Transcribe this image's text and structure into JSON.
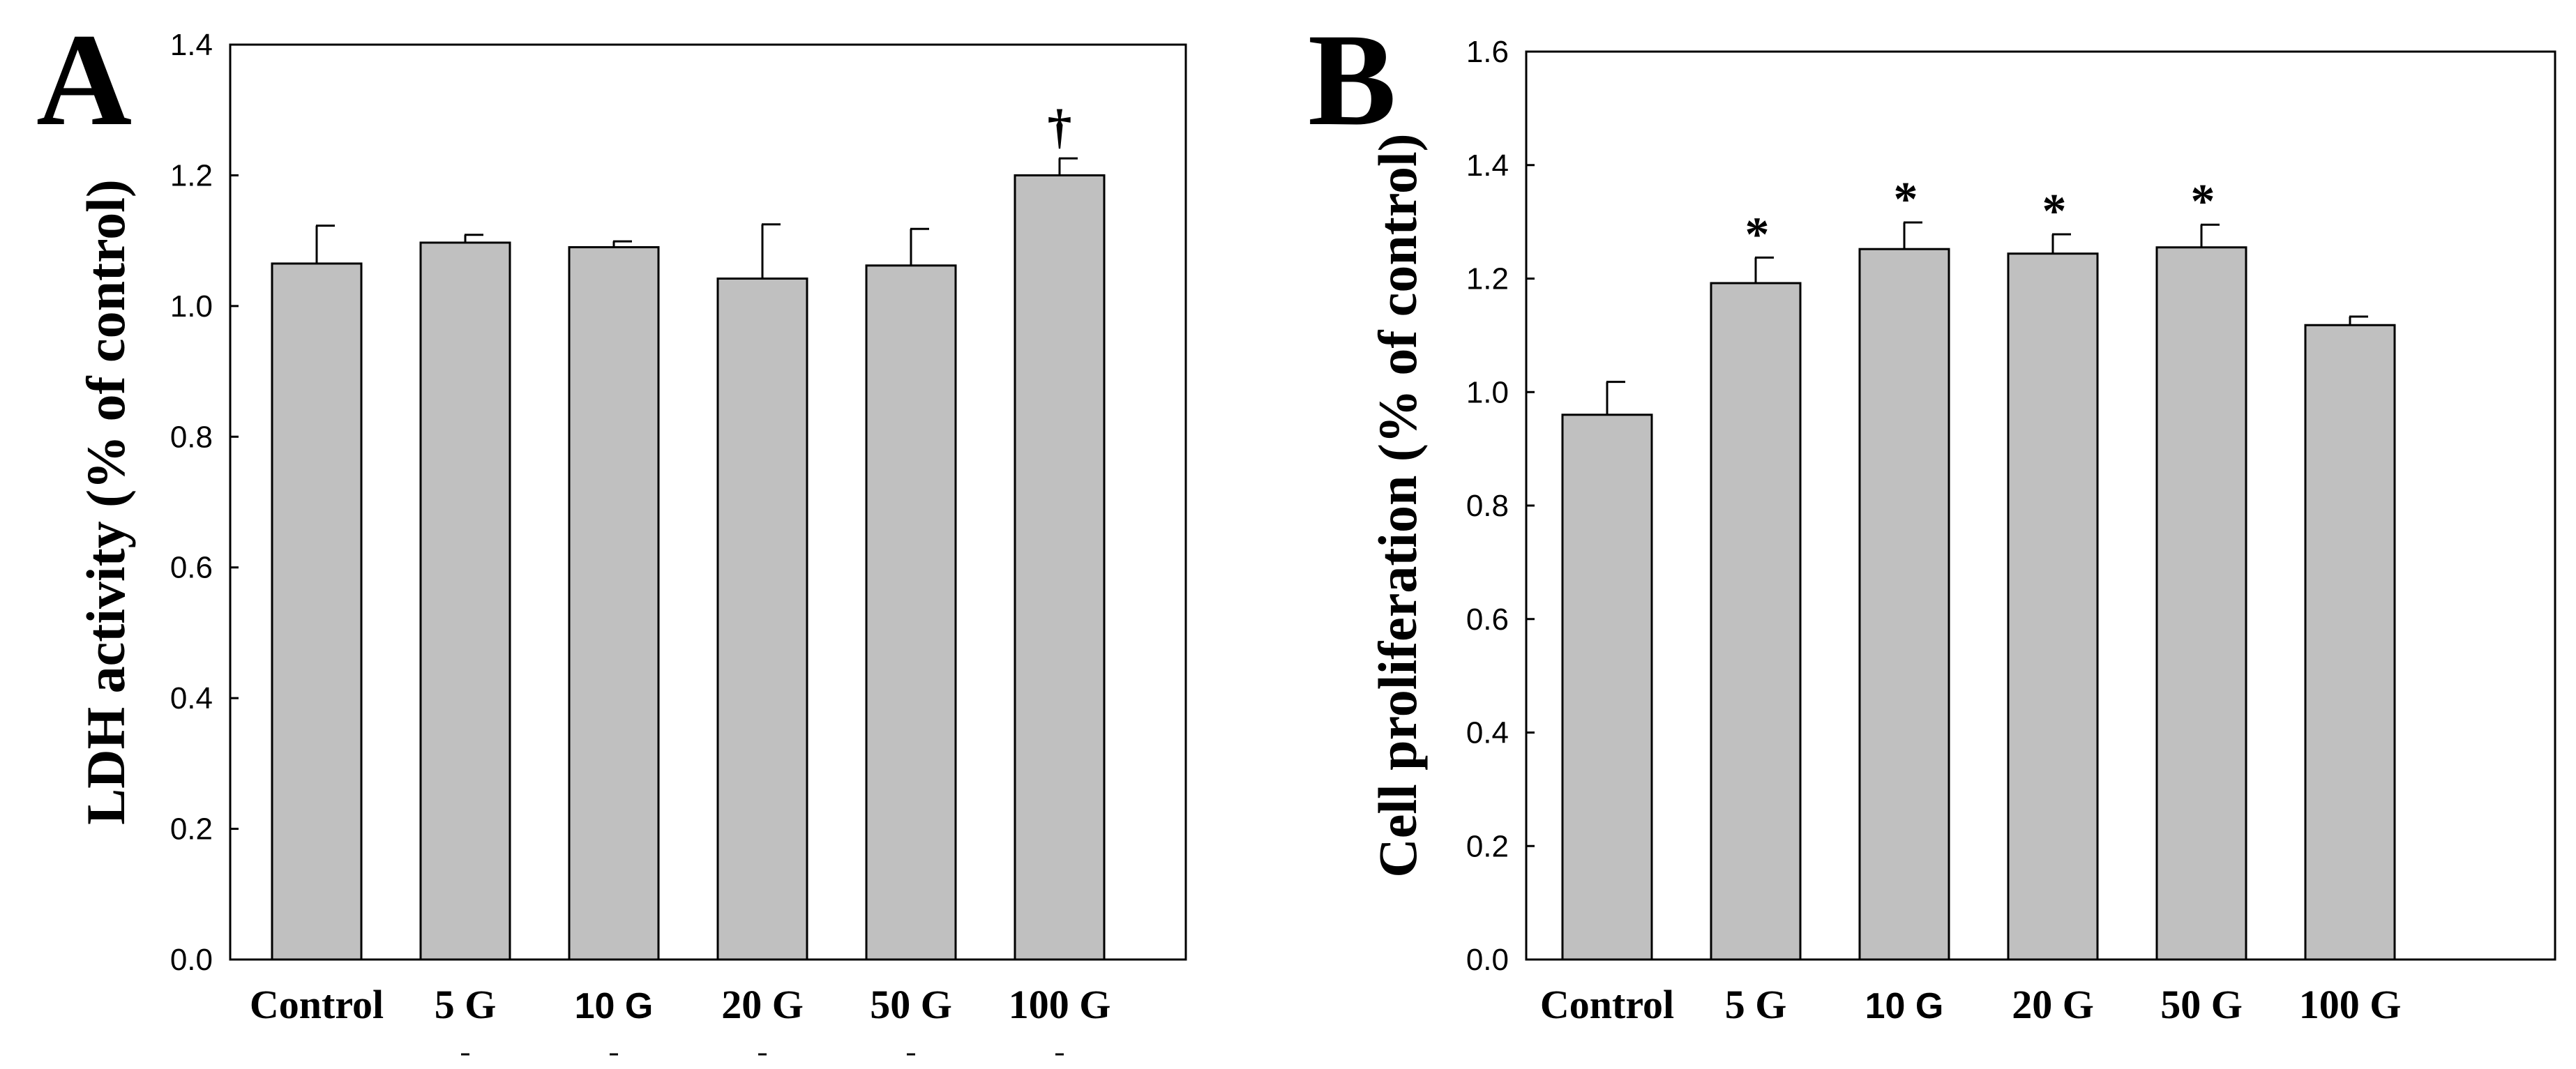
{
  "chart_data": [
    {
      "panel": "A",
      "type": "bar",
      "ylabel": "LDH activity (% of control)",
      "ylim": [
        0,
        1.4
      ],
      "yticks": [
        "0.0",
        "0.2",
        "0.4",
        "0.6",
        "0.8",
        "1.0",
        "1.2",
        "1.4"
      ],
      "categories": [
        "Control",
        "5 G",
        "10 G",
        "20 G",
        "50 G",
        "100 G"
      ],
      "values": [
        1.065,
        1.097,
        1.09,
        1.042,
        1.062,
        1.2
      ],
      "errors": [
        0.058,
        0.012,
        0.009,
        0.083,
        0.056,
        0.026
      ],
      "annotations": [
        "",
        "",
        "",
        "",
        "",
        "†"
      ],
      "grid": false
    },
    {
      "panel": "B",
      "type": "bar",
      "ylabel": "Cell proliferation (% of control)",
      "ylim": [
        0,
        1.6
      ],
      "yticks": [
        "0.0",
        "0.2",
        "0.4",
        "0.6",
        "0.8",
        "1.0",
        "1.2",
        "1.4",
        "1.6"
      ],
      "categories": [
        "Control",
        "5 G",
        "10 G",
        "20 G",
        "50 G",
        "100 G"
      ],
      "values": [
        0.96,
        1.192,
        1.252,
        1.244,
        1.255,
        1.118
      ],
      "errors": [
        0.058,
        0.045,
        0.047,
        0.034,
        0.04,
        0.015
      ],
      "annotations": [
        "",
        "*",
        "*",
        "*",
        "*",
        ""
      ],
      "grid": false
    }
  ]
}
